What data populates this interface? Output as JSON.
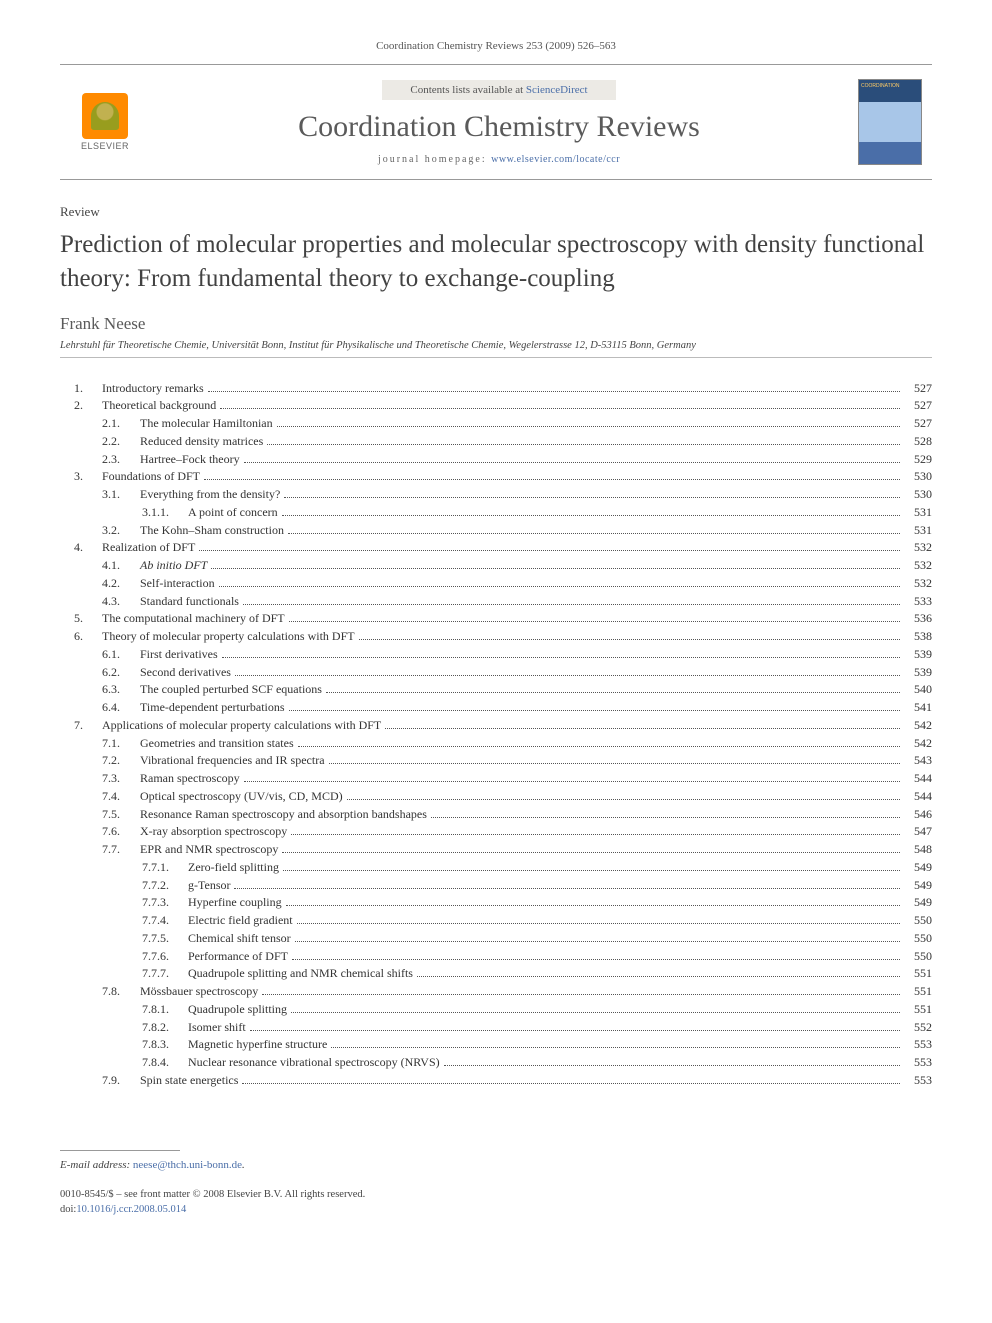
{
  "citation": "Coordination Chemistry Reviews 253 (2009) 526–563",
  "masthead": {
    "publisher": "ELSEVIER",
    "contents_prefix": "Contents lists available at ",
    "contents_link": "ScienceDirect",
    "journal_title": "Coordination Chemistry Reviews",
    "homepage_prefix": "journal homepage: ",
    "homepage_url": "www.elsevier.com/locate/ccr"
  },
  "article": {
    "type": "Review",
    "title": "Prediction of molecular properties and molecular spectroscopy with density functional theory: From fundamental theory to exchange-coupling",
    "author": "Frank Neese",
    "affiliation": "Lehrstuhl für Theoretische Chemie, Universität Bonn, Institut für Physikalische und Theoretische Chemie, Wegelerstrasse 12, D-53115 Bonn, Germany"
  },
  "toc": [
    {
      "lvl": 1,
      "num": "1.",
      "title": "Introductory remarks",
      "page": "527"
    },
    {
      "lvl": 1,
      "num": "2.",
      "title": "Theoretical background",
      "page": "527"
    },
    {
      "lvl": 2,
      "num": "2.1.",
      "title": "The molecular Hamiltonian",
      "page": "527"
    },
    {
      "lvl": 2,
      "num": "2.2.",
      "title": "Reduced density matrices",
      "page": "528"
    },
    {
      "lvl": 2,
      "num": "2.3.",
      "title": "Hartree–Fock theory",
      "page": "529"
    },
    {
      "lvl": 1,
      "num": "3.",
      "title": "Foundations of DFT",
      "page": "530"
    },
    {
      "lvl": 2,
      "num": "3.1.",
      "title": "Everything from the density?",
      "page": "530"
    },
    {
      "lvl": 3,
      "num": "3.1.1.",
      "title": "A point of concern",
      "page": "531"
    },
    {
      "lvl": 2,
      "num": "3.2.",
      "title": "The Kohn–Sham construction",
      "page": "531"
    },
    {
      "lvl": 1,
      "num": "4.",
      "title": "Realization of DFT",
      "page": "532"
    },
    {
      "lvl": 2,
      "num": "4.1.",
      "title": "Ab initio DFT",
      "page": "532",
      "italic": true
    },
    {
      "lvl": 2,
      "num": "4.2.",
      "title": "Self-interaction",
      "page": "532"
    },
    {
      "lvl": 2,
      "num": "4.3.",
      "title": "Standard functionals",
      "page": "533"
    },
    {
      "lvl": 1,
      "num": "5.",
      "title": "The computational machinery of DFT",
      "page": "536"
    },
    {
      "lvl": 1,
      "num": "6.",
      "title": "Theory of molecular property calculations with DFT",
      "page": "538"
    },
    {
      "lvl": 2,
      "num": "6.1.",
      "title": "First derivatives",
      "page": "539"
    },
    {
      "lvl": 2,
      "num": "6.2.",
      "title": "Second derivatives",
      "page": "539"
    },
    {
      "lvl": 2,
      "num": "6.3.",
      "title": "The coupled perturbed SCF equations",
      "page": "540"
    },
    {
      "lvl": 2,
      "num": "6.4.",
      "title": "Time-dependent perturbations",
      "page": "541"
    },
    {
      "lvl": 1,
      "num": "7.",
      "title": "Applications of molecular property calculations with DFT",
      "page": "542"
    },
    {
      "lvl": 2,
      "num": "7.1.",
      "title": "Geometries and transition states",
      "page": "542"
    },
    {
      "lvl": 2,
      "num": "7.2.",
      "title": "Vibrational frequencies and IR spectra",
      "page": "543"
    },
    {
      "lvl": 2,
      "num": "7.3.",
      "title": "Raman spectroscopy",
      "page": "544"
    },
    {
      "lvl": 2,
      "num": "7.4.",
      "title": "Optical spectroscopy (UV/vis, CD, MCD)",
      "page": "544"
    },
    {
      "lvl": 2,
      "num": "7.5.",
      "title": "Resonance Raman spectroscopy and absorption bandshapes",
      "page": "546"
    },
    {
      "lvl": 2,
      "num": "7.6.",
      "title": "X-ray absorption spectroscopy",
      "page": "547"
    },
    {
      "lvl": 2,
      "num": "7.7.",
      "title": "EPR and NMR spectroscopy",
      "page": "548"
    },
    {
      "lvl": 3,
      "num": "7.7.1.",
      "title": "Zero-field splitting",
      "page": "549"
    },
    {
      "lvl": 3,
      "num": "7.7.2.",
      "title": "g-Tensor",
      "page": "549"
    },
    {
      "lvl": 3,
      "num": "7.7.3.",
      "title": "Hyperfine coupling",
      "page": "549"
    },
    {
      "lvl": 3,
      "num": "7.7.4.",
      "title": "Electric field gradient",
      "page": "550"
    },
    {
      "lvl": 3,
      "num": "7.7.5.",
      "title": "Chemical shift tensor",
      "page": "550"
    },
    {
      "lvl": 3,
      "num": "7.7.6.",
      "title": "Performance of DFT",
      "page": "550"
    },
    {
      "lvl": 3,
      "num": "7.7.7.",
      "title": "Quadrupole splitting and NMR chemical shifts",
      "page": "551"
    },
    {
      "lvl": 2,
      "num": "7.8.",
      "title": "Mössbauer spectroscopy",
      "page": "551"
    },
    {
      "lvl": 3,
      "num": "7.8.1.",
      "title": "Quadrupole splitting",
      "page": "551"
    },
    {
      "lvl": 3,
      "num": "7.8.2.",
      "title": "Isomer shift",
      "page": "552"
    },
    {
      "lvl": 3,
      "num": "7.8.3.",
      "title": "Magnetic hyperfine structure",
      "page": "553"
    },
    {
      "lvl": 3,
      "num": "7.8.4.",
      "title": "Nuclear resonance vibrational spectroscopy (NRVS)",
      "page": "553"
    },
    {
      "lvl": 2,
      "num": "7.9.",
      "title": "Spin state energetics",
      "page": "553"
    }
  ],
  "footer": {
    "email_label": "E-mail address:",
    "email": "neese@thch.uni-bonn.de",
    "copyright_line1": "0010-8545/$ – see front matter © 2008 Elsevier B.V. All rights reserved.",
    "doi_prefix": "doi:",
    "doi": "10.1016/j.ccr.2008.05.014"
  }
}
